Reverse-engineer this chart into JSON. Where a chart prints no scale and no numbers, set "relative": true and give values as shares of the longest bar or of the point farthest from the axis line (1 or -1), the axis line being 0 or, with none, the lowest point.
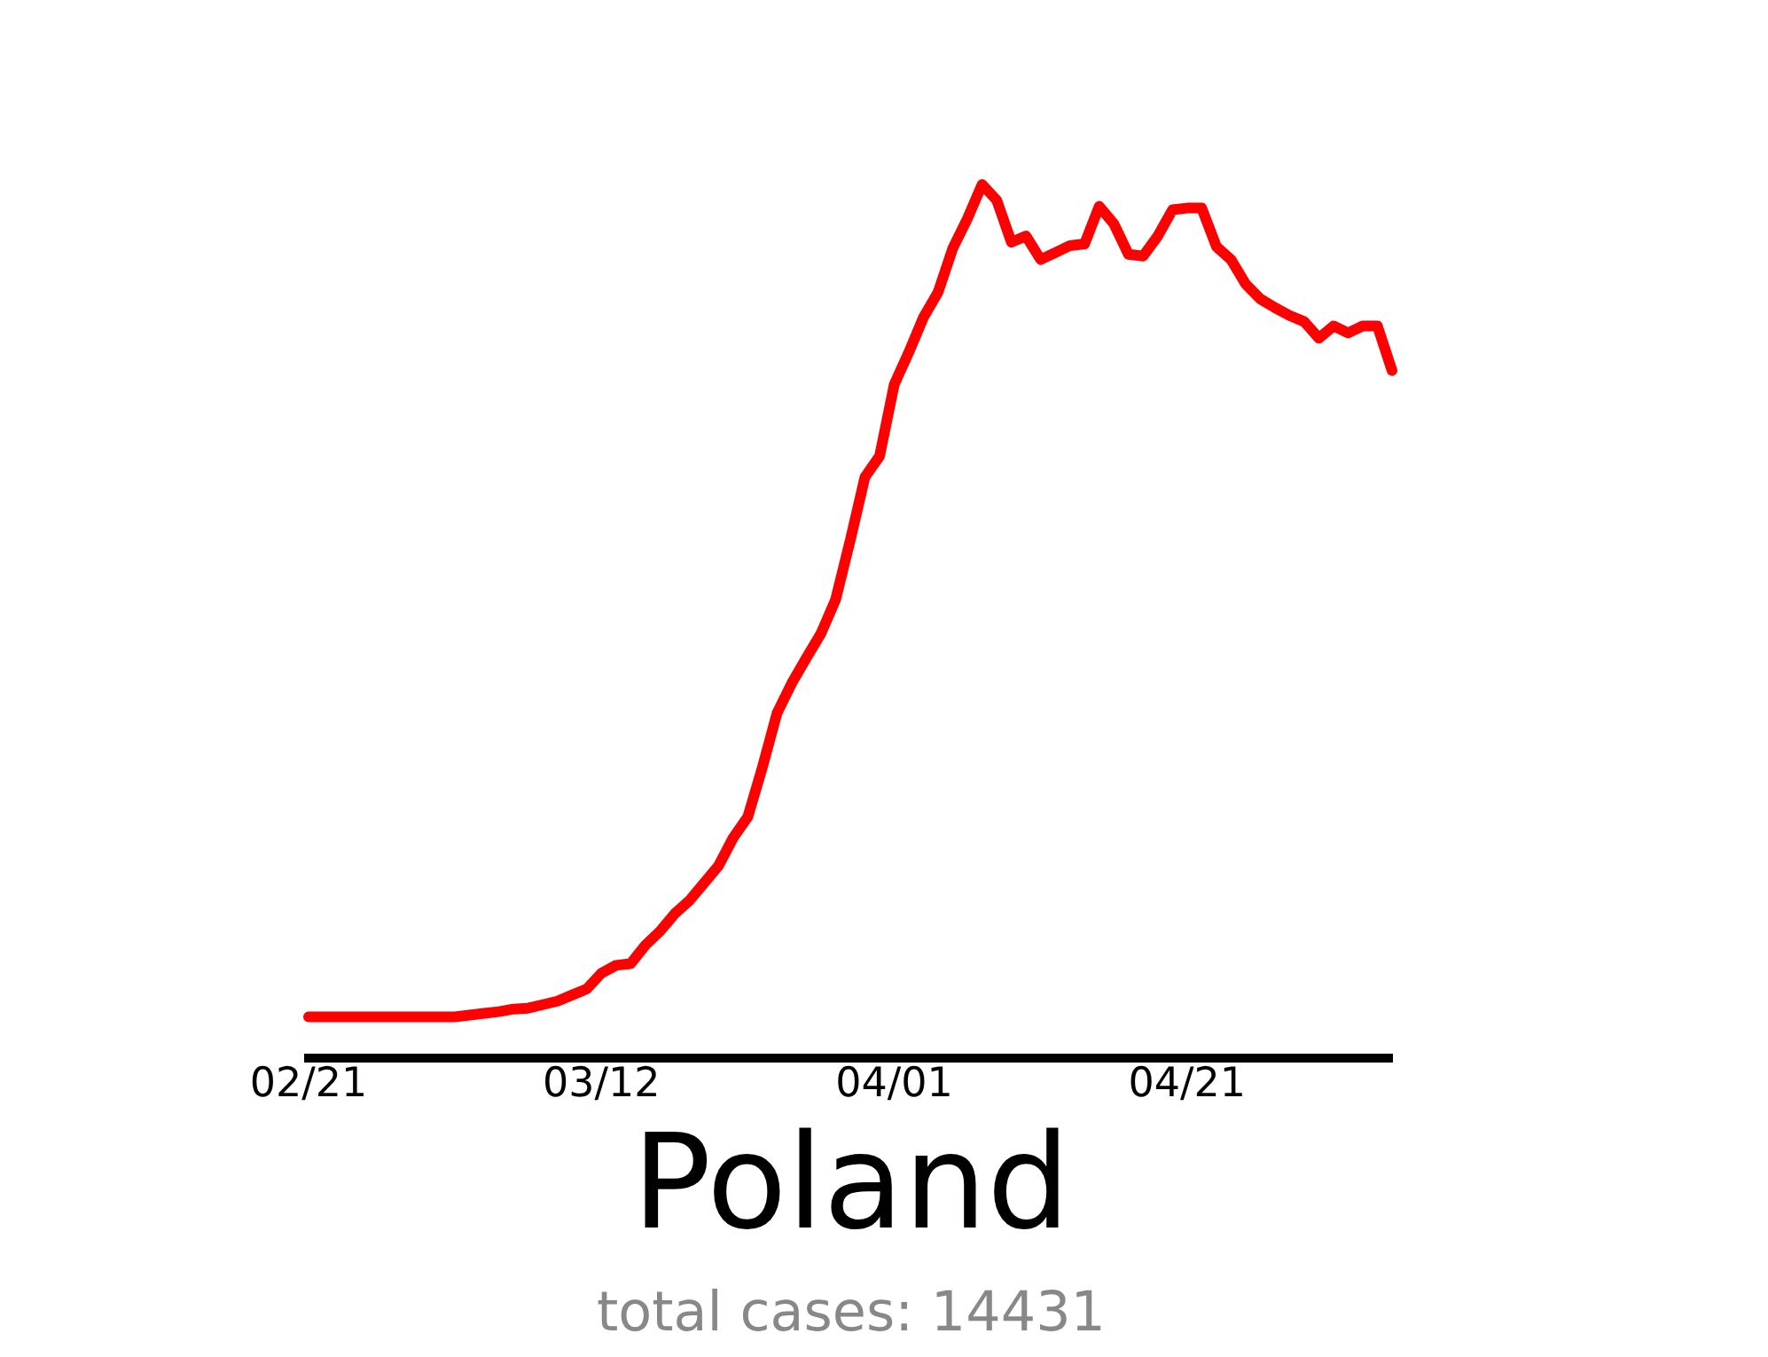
{
  "chart_data": {
    "type": "line",
    "title": "Poland",
    "subtitle": "total cases: 14431",
    "relative": true,
    "grid": false,
    "legend": false,
    "marker": "none",
    "line_style": "solid",
    "categories": [
      "02/21",
      null,
      null,
      null,
      null,
      null,
      null,
      null,
      null,
      null,
      null,
      null,
      null,
      null,
      null,
      null,
      null,
      null,
      null,
      null,
      "03/12",
      null,
      null,
      null,
      null,
      null,
      null,
      null,
      null,
      null,
      null,
      null,
      null,
      null,
      null,
      null,
      null,
      null,
      null,
      null,
      "04/01",
      null,
      null,
      null,
      null,
      null,
      null,
      null,
      null,
      null,
      null,
      null,
      null,
      null,
      null,
      null,
      null,
      null,
      null,
      null,
      "04/21",
      null,
      null,
      null,
      null,
      null,
      null,
      null,
      null,
      null,
      null,
      null,
      null,
      null,
      null
    ],
    "series": [
      {
        "color": "#ff0000",
        "values": [
          0.047,
          0.047,
          0.047,
          0.047,
          0.047,
          0.047,
          0.047,
          0.047,
          0.047,
          0.047,
          0.047,
          0.049,
          0.051,
          0.053,
          0.056,
          0.057,
          0.061,
          0.065,
          0.072,
          0.079,
          0.097,
          0.106,
          0.108,
          0.129,
          0.145,
          0.165,
          0.18,
          0.2,
          0.22,
          0.252,
          0.276,
          0.333,
          0.395,
          0.429,
          0.458,
          0.486,
          0.525,
          0.593,
          0.665,
          0.689,
          0.771,
          0.808,
          0.848,
          0.877,
          0.927,
          0.961,
          1,
          0.982,
          0.934,
          0.941,
          0.914,
          0.922,
          0.93,
          0.932,
          0.975,
          0.955,
          0.92,
          0.918,
          0.941,
          0.971,
          0.973,
          0.973,
          0.929,
          0.914,
          0.886,
          0.869,
          0.859,
          0.85,
          0.843,
          0.824,
          0.838,
          0.83,
          0.838,
          0.838,
          0.787
        ]
      }
    ]
  }
}
